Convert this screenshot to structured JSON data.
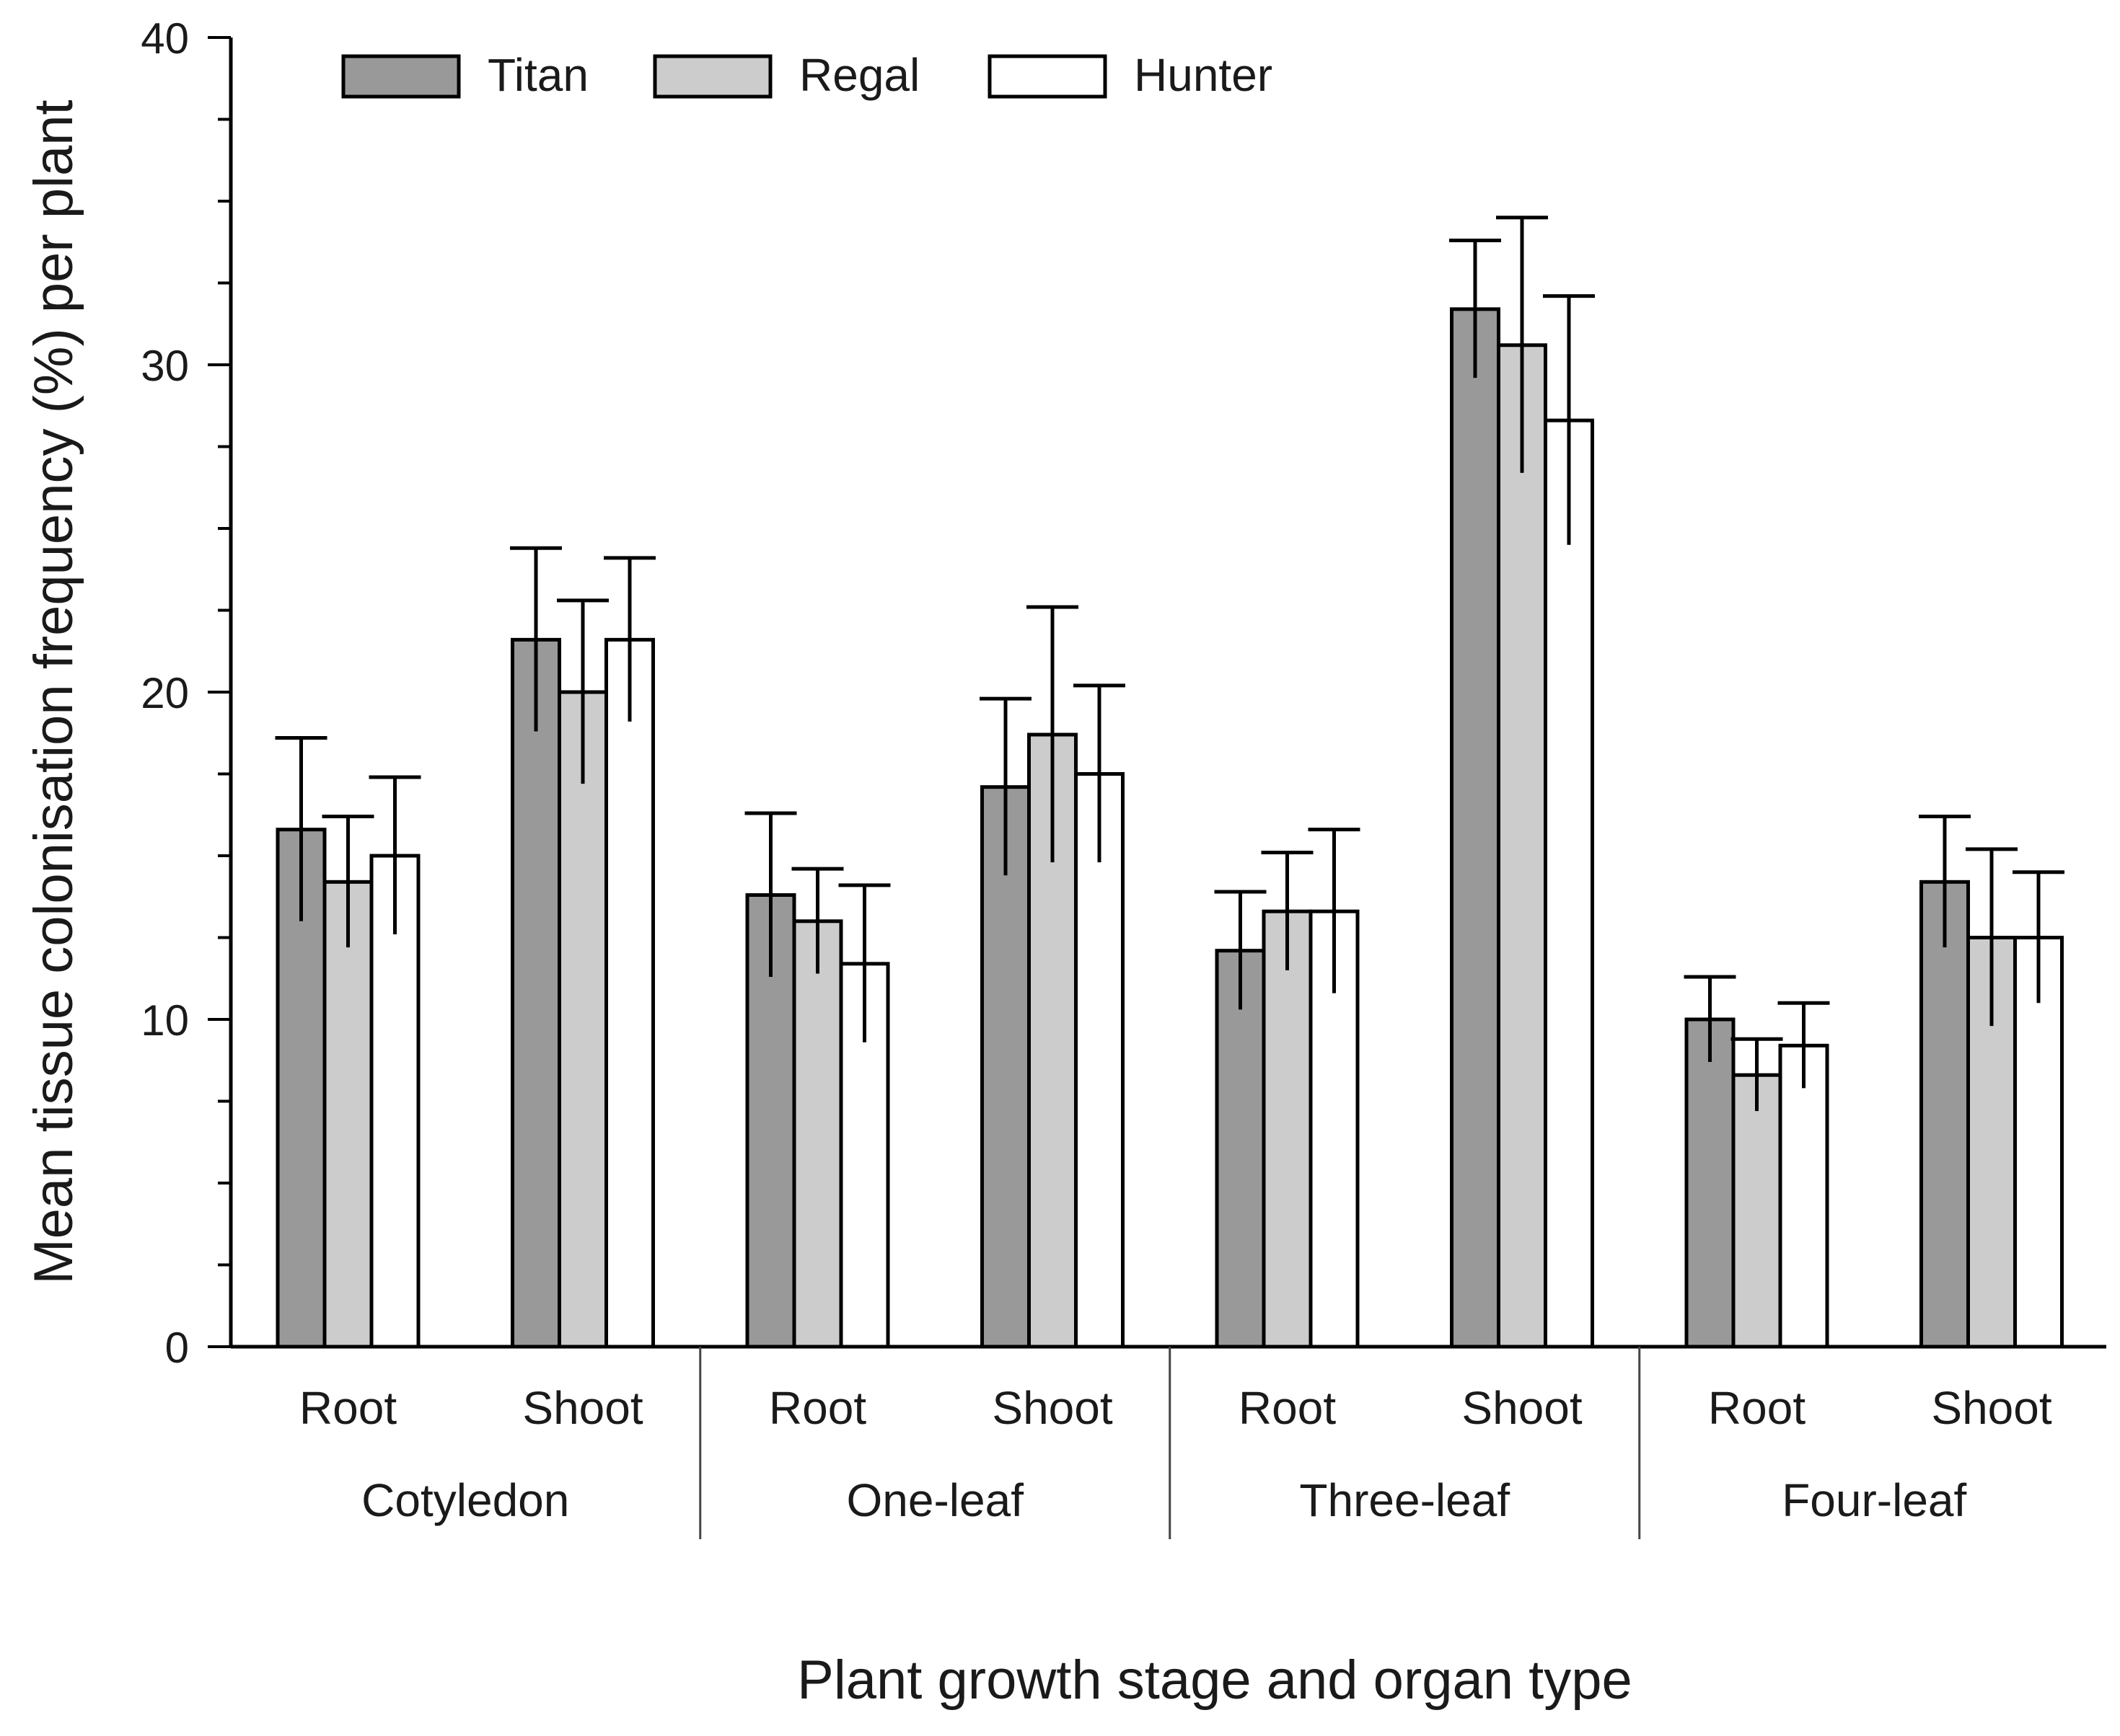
{
  "chart_data": {
    "type": "bar",
    "title": "",
    "xlabel": "Plant growth stage and organ type",
    "ylabel": "Mean tissue colonisation frequency (%) per plant",
    "ylim": [
      0,
      40
    ],
    "yticks": [
      0,
      10,
      20,
      30,
      40
    ],
    "grid": false,
    "legend_position": "top-left",
    "groups": [
      {
        "stage": "Cotyledon",
        "organs": [
          "Root",
          "Shoot"
        ]
      },
      {
        "stage": "One-leaf",
        "organs": [
          "Root",
          "Shoot"
        ]
      },
      {
        "stage": "Three-leaf",
        "organs": [
          "Root",
          "Shoot"
        ]
      },
      {
        "stage": "Four-leaf",
        "organs": [
          "Root",
          "Shoot"
        ]
      }
    ],
    "categories": [
      "Cotyledon Root",
      "Cotyledon Shoot",
      "One-leaf Root",
      "One-leaf Shoot",
      "Three-leaf Root",
      "Three-leaf Shoot",
      "Four-leaf Root",
      "Four-leaf Shoot"
    ],
    "series": [
      {
        "name": "Titan",
        "color": "#999999",
        "values": [
          15.8,
          21.6,
          13.8,
          17.1,
          12.1,
          31.7,
          10.0,
          14.2
        ],
        "errors": [
          2.8,
          2.8,
          2.5,
          2.7,
          1.8,
          2.1,
          1.3,
          2.0
        ]
      },
      {
        "name": "Regal",
        "color": "#cccccc",
        "values": [
          14.2,
          20.0,
          13.0,
          18.7,
          13.3,
          30.6,
          8.3,
          12.5
        ],
        "errors": [
          2.0,
          2.8,
          1.6,
          3.9,
          1.8,
          3.9,
          1.1,
          2.7
        ]
      },
      {
        "name": "Hunter",
        "color": "#ffffff",
        "values": [
          15.0,
          21.6,
          11.7,
          17.5,
          13.3,
          28.3,
          9.2,
          12.5
        ],
        "errors": [
          2.4,
          2.5,
          2.4,
          2.7,
          2.5,
          3.8,
          1.3,
          2.0
        ]
      }
    ]
  }
}
